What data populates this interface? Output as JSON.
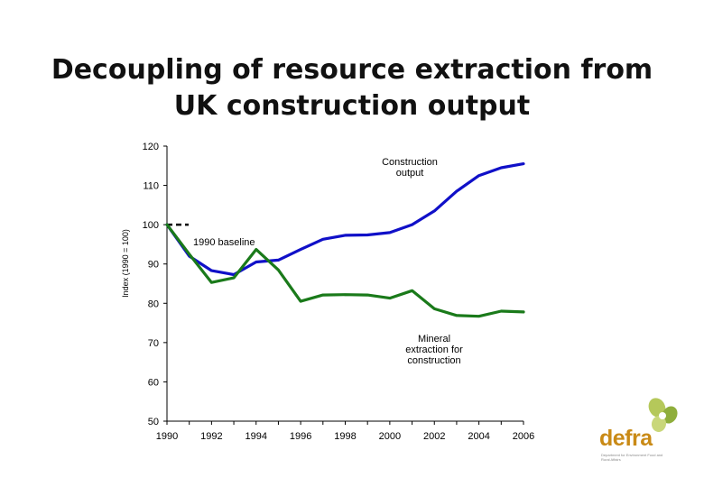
{
  "slide": {
    "title": "Decoupling of resource extraction from UK construction output"
  },
  "chart_data": {
    "type": "line",
    "title": "Decoupling of resource extraction from UK construction output",
    "xlabel": "",
    "ylabel": "Index (1990 = 100)",
    "xlim": [
      1990,
      2006
    ],
    "ylim": [
      50,
      120
    ],
    "y_ticks": [
      50,
      60,
      70,
      80,
      90,
      100,
      110,
      120
    ],
    "x_ticks": [
      1990,
      1992,
      1994,
      1996,
      1998,
      2000,
      2002,
      2004,
      2006
    ],
    "x": [
      1990,
      1991,
      1992,
      1993,
      1994,
      1995,
      1996,
      1997,
      1998,
      1999,
      2000,
      2001,
      2002,
      2003,
      2004,
      2005,
      2006
    ],
    "series": [
      {
        "name": "Construction output",
        "label_lines": [
          "Construction",
          "output"
        ],
        "color": "#1010c8",
        "values": [
          100,
          92,
          88.3,
          87.3,
          90.5,
          91,
          93.7,
          96.3,
          97.3,
          97.4,
          98,
          100,
          103.5,
          108.5,
          112.5,
          114.5,
          115.5
        ]
      },
      {
        "name": "Mineral extraction for construction",
        "label_lines": [
          "Mineral",
          "extraction for",
          "construction"
        ],
        "color": "#1a7a1a",
        "values": [
          100,
          92.5,
          85.3,
          86.5,
          93.7,
          88.5,
          80.5,
          82.1,
          82.2,
          82.1,
          81.3,
          83.2,
          78.6,
          76.9,
          76.7,
          78,
          77.8
        ]
      }
    ],
    "baseline": {
      "value": 100,
      "label": "1990 baseline",
      "style": "dashed"
    }
  },
  "logo": {
    "text": "defra",
    "subtitle": "Department for Environment Food and Rural Affairs"
  }
}
